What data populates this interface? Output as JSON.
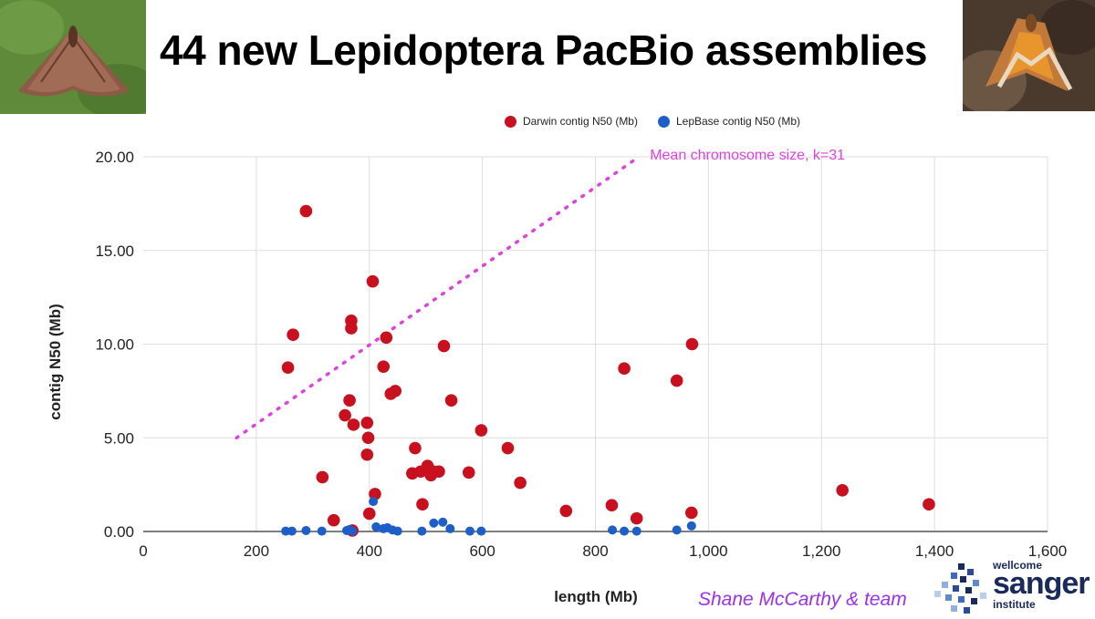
{
  "slide": {
    "title": "44 new Lepidoptera PacBio assemblies",
    "credit": "Shane McCarthy & team",
    "logo": {
      "line1": "wellcome",
      "line2": "sanger",
      "line3": "institute"
    },
    "images": {
      "left": "moth-photo-brown",
      "right": "moth-photo-orange"
    }
  },
  "colors": {
    "darwin": "#c8101e",
    "lepbase": "#1d5ec8",
    "annotation": "#e040e0",
    "credit": "#9b30f0",
    "grid": "#dddddd"
  },
  "chart_data": {
    "type": "scatter",
    "title": "",
    "xlabel": "length (Mb)",
    "ylabel": "contig N50 (Mb)",
    "xlim": [
      0,
      1600
    ],
    "ylim": [
      0,
      20
    ],
    "x_ticks": [
      0,
      200,
      400,
      600,
      800,
      1000,
      1200,
      1400,
      1600
    ],
    "x_tick_labels": [
      "0",
      "200",
      "400",
      "600",
      "800",
      "1,000",
      "1,200",
      "1,400",
      "1,600"
    ],
    "y_ticks": [
      0,
      5,
      10,
      15,
      20
    ],
    "y_tick_labels": [
      "0.00",
      "5.00",
      "10.00",
      "15.00",
      "20.00"
    ],
    "grid": true,
    "legend_position": "top",
    "series": [
      {
        "name": "Darwin contig N50 (Mb)",
        "color": "#c8101e",
        "points": [
          [
            288,
            17.1
          ],
          [
            256,
            8.75
          ],
          [
            265,
            10.5
          ],
          [
            317,
            2.9
          ],
          [
            337,
            0.6
          ],
          [
            357,
            6.2
          ],
          [
            365,
            7.0
          ],
          [
            368,
            11.25
          ],
          [
            368,
            10.85
          ],
          [
            372,
            5.7
          ],
          [
            370,
            0.05
          ],
          [
            396,
            5.8
          ],
          [
            396,
            4.1
          ],
          [
            398,
            5.0
          ],
          [
            400,
            0.95
          ],
          [
            406,
            13.35
          ],
          [
            410,
            2.0
          ],
          [
            425,
            8.8
          ],
          [
            430,
            10.35
          ],
          [
            438,
            7.35
          ],
          [
            446,
            7.5
          ],
          [
            476,
            3.1
          ],
          [
            481,
            4.45
          ],
          [
            491,
            3.2
          ],
          [
            494,
            1.45
          ],
          [
            503,
            3.5
          ],
          [
            509,
            3.0
          ],
          [
            514,
            3.2
          ],
          [
            523,
            3.2
          ],
          [
            532,
            9.9
          ],
          [
            545,
            7.0
          ],
          [
            576,
            3.15
          ],
          [
            598,
            5.4
          ],
          [
            645,
            4.45
          ],
          [
            667,
            2.6
          ],
          [
            748,
            1.1
          ],
          [
            829,
            1.4
          ],
          [
            851,
            8.7
          ],
          [
            873,
            0.7
          ],
          [
            944,
            8.05
          ],
          [
            970,
            1.0
          ],
          [
            971,
            10.0
          ],
          [
            1237,
            2.2
          ],
          [
            1390,
            1.45
          ]
        ]
      },
      {
        "name": "LepBase contig N50 (Mb)",
        "color": "#1d5ec8",
        "points": [
          [
            252,
            0.02
          ],
          [
            263,
            0.02
          ],
          [
            288,
            0.05
          ],
          [
            316,
            0.02
          ],
          [
            360,
            0.05
          ],
          [
            365,
            0.1
          ],
          [
            370,
            0.02
          ],
          [
            407,
            1.6
          ],
          [
            412,
            0.25
          ],
          [
            425,
            0.15
          ],
          [
            432,
            0.2
          ],
          [
            441,
            0.08
          ],
          [
            450,
            0.02
          ],
          [
            493,
            0.02
          ],
          [
            514,
            0.45
          ],
          [
            530,
            0.5
          ],
          [
            543,
            0.15
          ],
          [
            578,
            0.02
          ],
          [
            598,
            0.02
          ],
          [
            830,
            0.08
          ],
          [
            851,
            0.02
          ],
          [
            873,
            0.02
          ],
          [
            944,
            0.08
          ],
          [
            970,
            0.3
          ]
        ]
      }
    ],
    "reference_line": {
      "label": "Mean chromosome size, k=31",
      "style": "dotted",
      "points": [
        [
          165,
          5.0
        ],
        [
          877,
          20.0
        ]
      ]
    }
  }
}
